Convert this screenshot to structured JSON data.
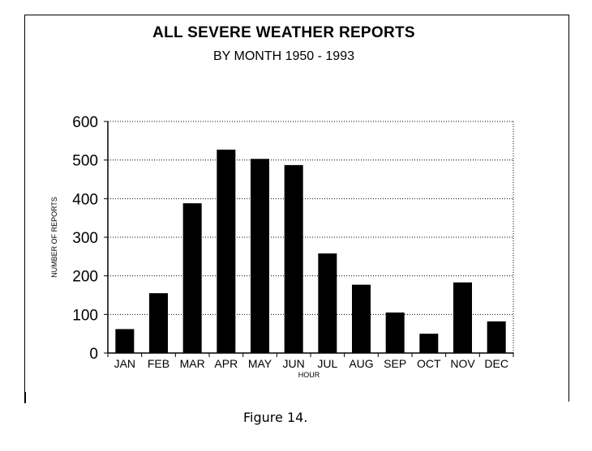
{
  "chart_data": {
    "type": "bar",
    "title": "ALL SEVERE WEATHER REPORTS",
    "subtitle": "BY MONTH 1950 - 1993",
    "xlabel": "HOUR",
    "ylabel": "NUMBER OF REPORTS",
    "categories": [
      "JAN",
      "FEB",
      "MAR",
      "APR",
      "MAY",
      "JUN",
      "JUL",
      "AUG",
      "SEP",
      "OCT",
      "NOV",
      "DEC"
    ],
    "values": [
      62,
      155,
      388,
      527,
      503,
      487,
      258,
      177,
      105,
      50,
      183,
      82
    ],
    "ylim": [
      0,
      600
    ],
    "yticks": [
      "0",
      "100",
      "200",
      "300",
      "400",
      "500",
      "600"
    ],
    "grid": true,
    "bar_color": "#000000"
  },
  "caption": "Figure 14."
}
